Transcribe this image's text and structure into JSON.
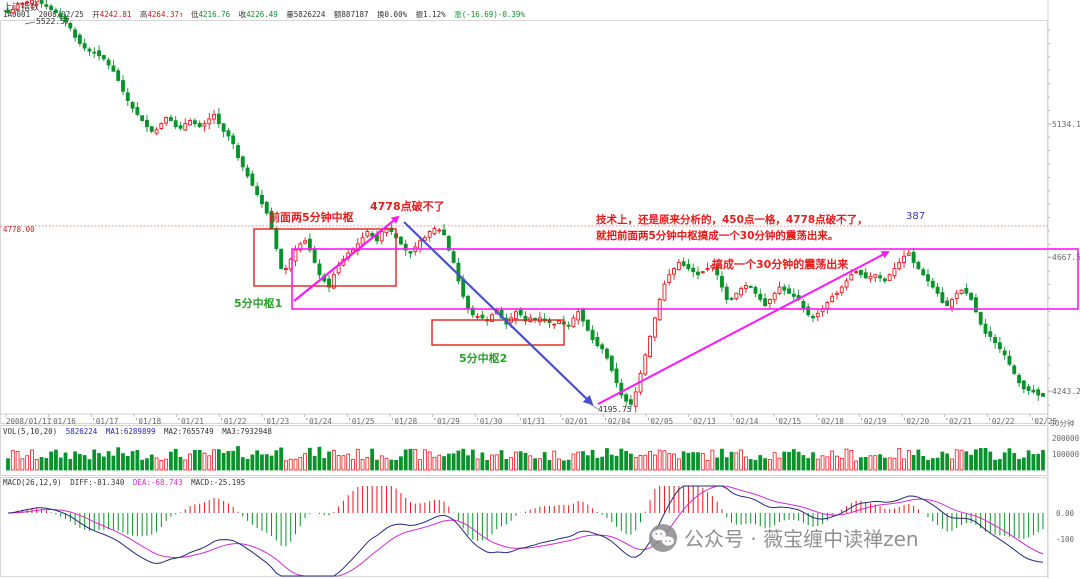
{
  "header": {
    "index_name": "上证指数",
    "code": "1A0001",
    "date": "2008/02/25",
    "open_label": "开",
    "open": "4242.81",
    "high_label": "高",
    "high": "4264.37",
    "low_label": "低",
    "low": "4216.76",
    "close_label": "收",
    "close": "4226.49",
    "vol_label": "量",
    "volume": "5826224",
    "amount_label": "额",
    "amount": "887187",
    "turnover_label": "换",
    "turnover": "0.00%",
    "amp_label": "振",
    "amplitude": "1.12%",
    "change_label": "涨",
    "change": "(-16.69)-0.39%"
  },
  "colors": {
    "up": "#e8171b",
    "down": "#08922a",
    "magenta": "#ff18ff",
    "blue_arrow": "#4a4fd0",
    "box_red": "#e02020",
    "annot_red": "#e61c1c",
    "annot_green": "#2aa02a",
    "diff_line": "#24297a",
    "dea_line": "#d02dd0",
    "axis_gray": "#9a9a9a"
  },
  "price_axis": {
    "labels": [
      "5134.1",
      "4667.5",
      "4243.2"
    ],
    "ref_level_label": "4778.00"
  },
  "date_axis": {
    "labels": [
      "2008/01/11",
      "'01/16",
      "'01/17",
      "'01/18",
      "'01/21",
      "'01/22",
      "'01/23",
      "'01/24",
      "'01/25",
      "'01/28",
      "'01/29",
      "'01/30",
      "'01/31",
      "'02/01",
      "'02/04",
      "'02/05",
      "'02/13",
      "'02/14",
      "'02/15",
      "'02/18",
      "'02/19",
      "'02/20",
      "'02/21",
      "'02/22",
      "'02/25"
    ],
    "unit_label": "30分钟"
  },
  "volume_panel": {
    "title": "VOL(5,10,20)",
    "value": "5826224",
    "ma1_label": "MA1:",
    "ma1": "6289899",
    "ma2_label": "MA2:",
    "ma2": "7655749",
    "ma3_label": "MA3:",
    "ma3": "7932948",
    "axis_labels": [
      "200000",
      "100000"
    ]
  },
  "macd_panel": {
    "title": "MACD(26,12,9)",
    "diff_label": "DIFF:",
    "diff": "-81.340",
    "dea_label": "DEA:",
    "dea": "-68.743",
    "macd_label": "MACD:",
    "macd": "-25.195",
    "axis_labels": [
      "0.00",
      "-100"
    ]
  },
  "annotations": {
    "high_price": "5522.57",
    "low_price": "4195.75",
    "cant_break": "4778点破不了",
    "first_two_zs": "前面两5分钟中枢",
    "zs1": "5分中枢1",
    "zs2": "5分中枢2",
    "tech_line1": "技术上，还是原来分析的，450点一格，4778点破不了，",
    "tech_line2": "就把前面两5分钟中枢搞成一个30分钟的震荡出来。",
    "make_30min": "搞成一个30分钟的震荡出来",
    "num_387": "387"
  },
  "watermark": {
    "text": "公众号 · 薇宝缠中读禅zen",
    "icon": "wechat-icon"
  },
  "chart_data": {
    "type": "candlestick",
    "period": "30分钟",
    "y_range": [
      4150,
      5600
    ],
    "ref_level": 4778,
    "high_point": 5522.57,
    "low_point": 4195.75,
    "close_path": [
      5470,
      5480,
      5495,
      5500,
      5505,
      5510,
      5515,
      5500,
      5490,
      5480,
      5470,
      5455,
      5440,
      5420,
      5390,
      5370,
      5355,
      5345,
      5340,
      5330,
      5320,
      5300,
      5280,
      5250,
      5215,
      5185,
      5160,
      5140,
      5120,
      5100,
      5085,
      5090,
      5110,
      5130,
      5120,
      5100,
      5095,
      5110,
      5120,
      5110,
      5100,
      5110,
      5125,
      5140,
      5110,
      5085,
      5070,
      5045,
      5000,
      4970,
      4940,
      4910,
      4880,
      4850,
      4820,
      4770,
      4705,
      4640,
      4640,
      4670,
      4700,
      4720,
      4730,
      4700,
      4660,
      4620,
      4600,
      4580,
      4620,
      4650,
      4670,
      4690,
      4700,
      4720,
      4740,
      4760,
      4745,
      4730,
      4760,
      4770,
      4760,
      4740,
      4720,
      4700,
      4690,
      4710,
      4730,
      4740,
      4760,
      4770,
      4765,
      4750,
      4700,
      4660,
      4600,
      4550,
      4510,
      4490,
      4485,
      4480,
      4470,
      4490,
      4505,
      4480,
      4460,
      4480,
      4500,
      4490,
      4470,
      4480,
      4475,
      4480,
      4470,
      4465,
      4460,
      4470,
      4460,
      4455,
      4480,
      4500,
      4470,
      4440,
      4410,
      4390,
      4380,
      4350,
      4310,
      4270,
      4230,
      4210,
      4200,
      4240,
      4300,
      4360,
      4420,
      4480,
      4540,
      4590,
      4620,
      4640,
      4660,
      4650,
      4640,
      4630,
      4620,
      4630,
      4640,
      4650,
      4620,
      4580,
      4540,
      4540,
      4560,
      4575,
      4585,
      4580,
      4560,
      4540,
      4520,
      4540,
      4560,
      4580,
      4570,
      4560,
      4550,
      4540,
      4510,
      4490,
      4480,
      4495,
      4510,
      4530,
      4550,
      4560,
      4580,
      4600,
      4620,
      4630,
      4620,
      4610,
      4615,
      4620,
      4610,
      4600,
      4620,
      4640,
      4660,
      4680,
      4690,
      4660,
      4640,
      4620,
      4600,
      4580,
      4560,
      4530,
      4520,
      4540,
      4560,
      4570,
      4560,
      4540,
      4500,
      4460,
      4430,
      4420,
      4400,
      4380,
      4360,
      4330,
      4300,
      4270,
      4250,
      4245,
      4240,
      4230,
      4226
    ]
  }
}
